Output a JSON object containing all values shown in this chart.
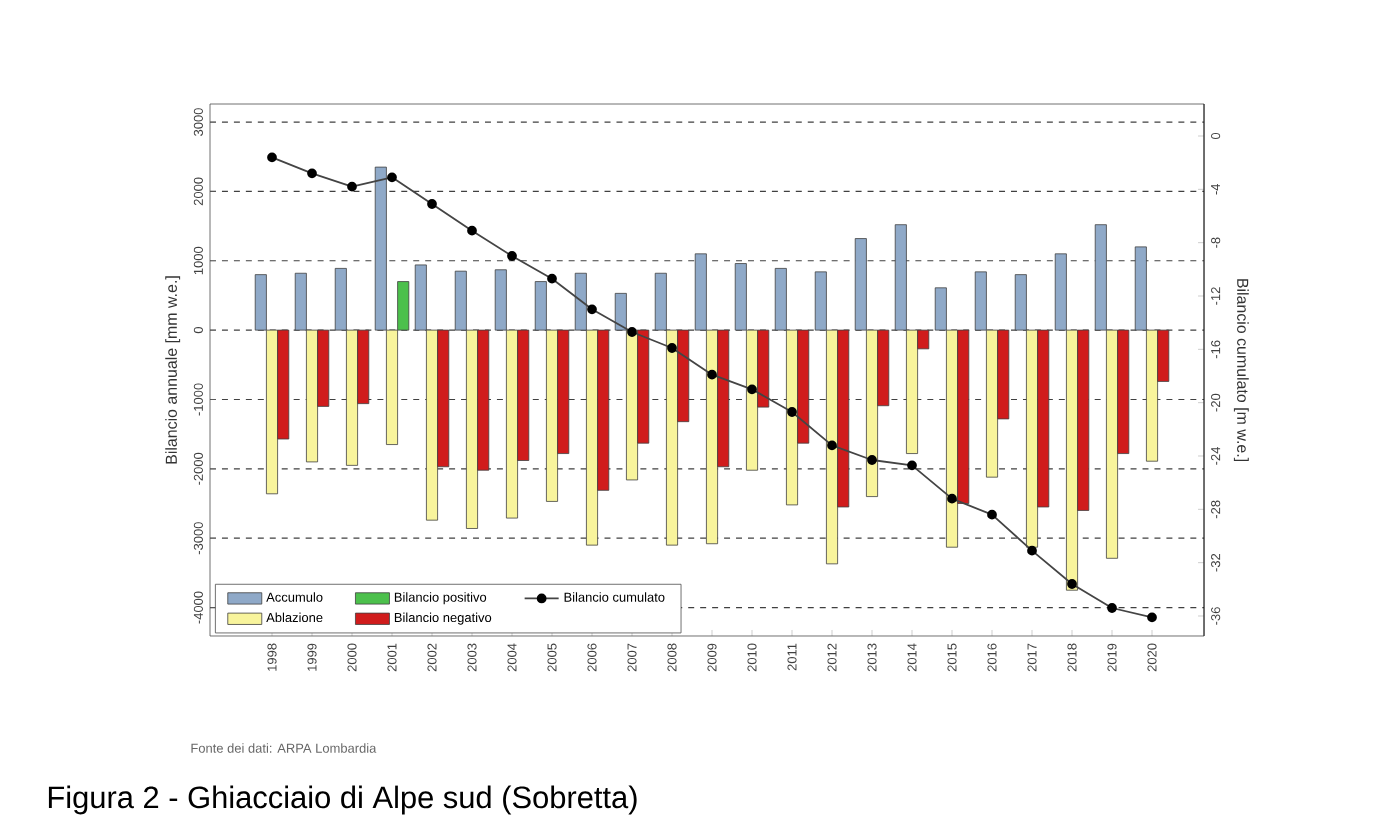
{
  "chart_data": {
    "type": "bar",
    "categories": [
      "1998",
      "1999",
      "2000",
      "2001",
      "2002",
      "2003",
      "2004",
      "2005",
      "2006",
      "2007",
      "2008",
      "2009",
      "2010",
      "2011",
      "2012",
      "2013",
      "2014",
      "2015",
      "2016",
      "2017",
      "2018",
      "2019",
      "2020"
    ],
    "series": [
      {
        "name": "Accumulo",
        "color": "#8fa9c8",
        "values": [
          800,
          820,
          890,
          2350,
          940,
          850,
          870,
          700,
          820,
          530,
          820,
          1100,
          960,
          890,
          840,
          1320,
          1520,
          610,
          840,
          800,
          1100,
          1520,
          1200
        ]
      },
      {
        "name": "Ablazione",
        "color": "#f8f49c",
        "values": [
          -2360,
          -1900,
          -1950,
          -1650,
          -2740,
          -2860,
          -2710,
          -2470,
          -3100,
          -2160,
          -3100,
          -3080,
          -2020,
          -2520,
          -3370,
          -2400,
          -1780,
          -3130,
          -2120,
          -3130,
          -3750,
          -3290,
          -1890
        ]
      },
      {
        "name": "Bilancio positivo",
        "color": "#4cc04c",
        "values": [
          null,
          null,
          null,
          700,
          null,
          null,
          null,
          null,
          null,
          null,
          null,
          null,
          null,
          null,
          null,
          null,
          null,
          null,
          null,
          null,
          null,
          null,
          null
        ]
      },
      {
        "name": "Bilancio negativo",
        "color": "#d01c1c",
        "values": [
          -1570,
          -1100,
          -1060,
          null,
          -1970,
          -2020,
          -1880,
          -1780,
          -2310,
          -1630,
          -1320,
          -1970,
          -1110,
          -1630,
          -2550,
          -1090,
          -270,
          -2500,
          -1280,
          -2550,
          -2600,
          -1780,
          -740
        ]
      },
      {
        "name": "Bilancio cumulato",
        "type": "line",
        "axis": "y2",
        "color": "#444444",
        "values": [
          -1.6,
          -2.8,
          -3.8,
          -3.1,
          -5.1,
          -7.1,
          -9,
          -10.7,
          -13,
          -14.7,
          -15.9,
          -17.9,
          -19,
          -20.7,
          -23.2,
          -24.3,
          -24.7,
          -27.2,
          -28.4,
          -31.1,
          -33.6,
          -35.4,
          -36.1
        ]
      }
    ],
    "ylabel": "Bilancio annuale [mm w.e.]",
    "y2label": "Bilancio cumulato [m w.e.]",
    "ylim": [
      -4410,
      3260
    ],
    "yticks": [
      -4000,
      -3000,
      -2000,
      -1000,
      0,
      1000,
      2000,
      3000
    ],
    "y2lim": [
      -37.5,
      2.4
    ],
    "y2ticks": [
      -36,
      -32,
      -28,
      -24,
      -20,
      -16,
      -12,
      -8,
      -4,
      0
    ],
    "grid": "y",
    "legend": "bottom left",
    "marker": "circle",
    "annotations": [
      "Fonte dei dati: ARPA Lombardia",
      "Figura  2 - Ghiacciaio di Alpe sud (Sobretta)"
    ]
  }
}
